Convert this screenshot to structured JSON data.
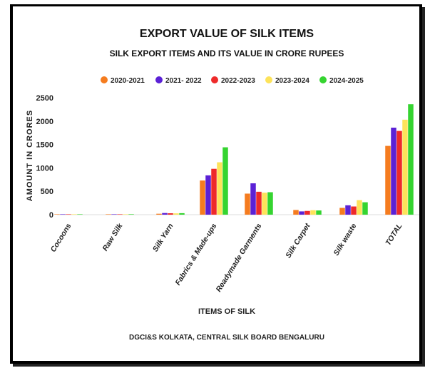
{
  "chart_data": {
    "type": "bar",
    "title": "EXPORT VALUE OF SILK ITEMS",
    "subtitle": "SILK EXPORT ITEMS AND ITS VALUE IN CRORE RUPEES",
    "xlabel": "ITEMS OF SILK",
    "ylabel": "AMOUNT IN CRORES",
    "source": "DGCI&S KOLKATA, CENTRAL SILK BOARD BENGALURU",
    "ylim": [
      0,
      2500
    ],
    "yticks": [
      0,
      500,
      1000,
      1500,
      2000,
      2500
    ],
    "ytick_labels": [
      "0",
      "500",
      "1000",
      "1500",
      "2000",
      "2500"
    ],
    "grid": false,
    "legend_position": "top",
    "categories": [
      "Cocoons",
      "Raw Silk",
      "Silk Yarn",
      "Fabrics & Made-ups",
      "Readymade Garments",
      "Silk Carpet",
      "Silk waste",
      "TOTAL"
    ],
    "series": [
      {
        "name": "2020-2021",
        "color": "#f57c1f",
        "values": [
          2,
          5,
          20,
          730,
          450,
          100,
          145,
          1470
        ]
      },
      {
        "name": "2021- 2022",
        "color": "#5b21d6",
        "values": [
          1,
          4,
          35,
          840,
          670,
          70,
          200,
          1860
        ]
      },
      {
        "name": "2022-2023",
        "color": "#ee2a2a",
        "values": [
          1,
          6,
          30,
          980,
          490,
          80,
          175,
          1790
        ]
      },
      {
        "name": "2023-2024",
        "color": "#fde35a",
        "values": [
          1,
          8,
          28,
          1120,
          470,
          95,
          310,
          2030
        ]
      },
      {
        "name": "2024-2025",
        "color": "#35d430",
        "values": [
          1,
          10,
          32,
          1440,
          480,
          90,
          265,
          2360
        ]
      }
    ]
  }
}
